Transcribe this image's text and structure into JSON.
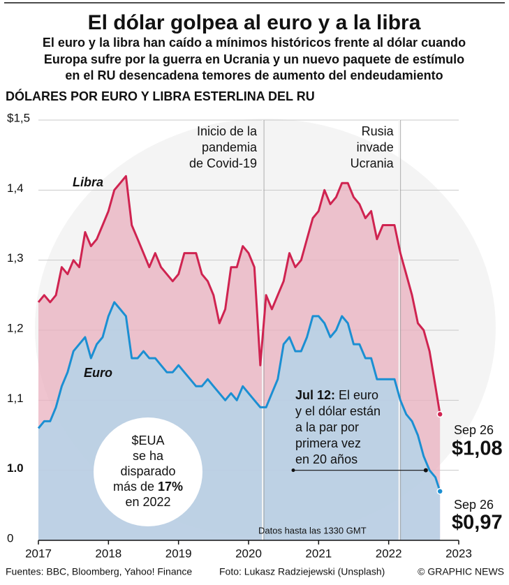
{
  "chart_data": {
    "type": "line",
    "title": "El dólar golpea al euro y a la libra",
    "subtitle": [
      "El euro y la libra han caído a mínimos históricos frente al dólar cuando",
      "Europa sufre por la guerra en Ucrania y un nuevo paquete de estímulo",
      "en el RU desencadena temores de aumento del endeudamiento"
    ],
    "y_label": "DÓLARES POR EURO Y LIBRA ESTERLINA DEL RU",
    "xlim": [
      2017,
      2023
    ],
    "xticks": [
      2017,
      2018,
      2019,
      2020,
      2021,
      2022,
      2023
    ],
    "ylim": [
      0.9,
      1.5
    ],
    "yticks": [
      {
        "value": 0.9,
        "label": "0"
      },
      {
        "value": 1.0,
        "label": "1.0"
      },
      {
        "value": 1.1,
        "label": "1,1"
      },
      {
        "value": 1.2,
        "label": "1,2"
      },
      {
        "value": 1.3,
        "label": "1,3"
      },
      {
        "value": 1.4,
        "label": "1,4"
      },
      {
        "value": 1.5,
        "label": "$1,5"
      }
    ],
    "grid": true,
    "x": [
      2017,
      2017.083,
      2017.167,
      2017.25,
      2017.333,
      2017.417,
      2017.5,
      2017.583,
      2017.667,
      2017.75,
      2017.833,
      2017.917,
      2018,
      2018.083,
      2018.167,
      2018.25,
      2018.333,
      2018.417,
      2018.5,
      2018.583,
      2018.667,
      2018.75,
      2018.833,
      2018.917,
      2019,
      2019.083,
      2019.167,
      2019.25,
      2019.333,
      2019.417,
      2019.5,
      2019.583,
      2019.667,
      2019.75,
      2019.833,
      2019.917,
      2020,
      2020.083,
      2020.167,
      2020.25,
      2020.333,
      2020.417,
      2020.5,
      2020.583,
      2020.667,
      2020.75,
      2020.833,
      2020.917,
      2021,
      2021.083,
      2021.167,
      2021.25,
      2021.333,
      2021.417,
      2021.5,
      2021.583,
      2021.667,
      2021.75,
      2021.833,
      2021.917,
      2022,
      2022.083,
      2022.167,
      2022.25,
      2022.333,
      2022.417,
      2022.5,
      2022.583,
      2022.667,
      2022.733
    ],
    "series": [
      {
        "name": "Libra",
        "color": "#cf2350",
        "fill": "#eab0bf",
        "values": [
          1.24,
          1.25,
          1.24,
          1.25,
          1.29,
          1.28,
          1.3,
          1.29,
          1.34,
          1.32,
          1.33,
          1.35,
          1.37,
          1.4,
          1.41,
          1.42,
          1.35,
          1.33,
          1.31,
          1.29,
          1.31,
          1.29,
          1.28,
          1.27,
          1.28,
          1.31,
          1.31,
          1.31,
          1.28,
          1.27,
          1.25,
          1.21,
          1.23,
          1.29,
          1.29,
          1.32,
          1.31,
          1.29,
          1.15,
          1.25,
          1.23,
          1.25,
          1.27,
          1.31,
          1.29,
          1.3,
          1.33,
          1.36,
          1.37,
          1.4,
          1.38,
          1.39,
          1.41,
          1.41,
          1.39,
          1.38,
          1.36,
          1.37,
          1.33,
          1.35,
          1.35,
          1.35,
          1.31,
          1.28,
          1.25,
          1.21,
          1.2,
          1.17,
          1.12,
          1.08
        ],
        "end_label": {
          "date": "Sep 26",
          "value_label": "$1,08"
        }
      },
      {
        "name": "Euro",
        "color": "#1b8fd2",
        "fill": "#aed6ec",
        "values": [
          1.06,
          1.07,
          1.07,
          1.09,
          1.12,
          1.14,
          1.17,
          1.18,
          1.19,
          1.16,
          1.18,
          1.19,
          1.22,
          1.24,
          1.23,
          1.22,
          1.16,
          1.16,
          1.17,
          1.16,
          1.16,
          1.15,
          1.14,
          1.14,
          1.15,
          1.14,
          1.13,
          1.12,
          1.12,
          1.13,
          1.12,
          1.11,
          1.1,
          1.11,
          1.1,
          1.12,
          1.11,
          1.1,
          1.09,
          1.09,
          1.11,
          1.13,
          1.18,
          1.19,
          1.17,
          1.17,
          1.19,
          1.22,
          1.22,
          1.21,
          1.19,
          1.2,
          1.22,
          1.21,
          1.18,
          1.18,
          1.16,
          1.16,
          1.13,
          1.13,
          1.13,
          1.13,
          1.1,
          1.08,
          1.07,
          1.05,
          1.02,
          1.0,
          0.99,
          0.97
        ],
        "end_label": {
          "date": "Sep 26",
          "value_label": "$0,97"
        }
      }
    ],
    "events": [
      {
        "x": 2020.2,
        "label": [
          "Inicio de la",
          "pandemia",
          "de Covid-19"
        ]
      },
      {
        "x": 2022.15,
        "label": [
          "Rusia",
          "invade",
          "Ucrania"
        ]
      }
    ],
    "parity": {
      "x": 2022.53,
      "y": 1.0,
      "bold": "Jul 12:",
      "first": " El euro",
      "lines": [
        "y el dólar están",
        "a la par por",
        "primera vez",
        "en 20 años"
      ]
    },
    "callout": {
      "lines": [
        "$EUA",
        "se ha",
        "disparado"
      ],
      "pre": "más de ",
      "bold": "17%",
      "last": "en 2022"
    },
    "note": "Datos hasta las 1330 GMT",
    "footer": {
      "sources": "Fuentes: BBC, Bloomberg, Yahoo! Finance",
      "photo": "Foto: Lukasz Radziejewski (Unsplash)",
      "credit": "© GRAPHIC NEWS"
    }
  }
}
